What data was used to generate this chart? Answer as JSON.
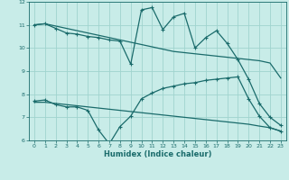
{
  "xlabel": "Humidex (Indice chaleur)",
  "xlim": [
    -0.5,
    23.5
  ],
  "ylim": [
    6,
    12
  ],
  "yticks": [
    6,
    7,
    8,
    9,
    10,
    11,
    12
  ],
  "xticks": [
    0,
    1,
    2,
    3,
    4,
    5,
    6,
    7,
    8,
    9,
    10,
    11,
    12,
    13,
    14,
    15,
    16,
    17,
    18,
    19,
    20,
    21,
    22,
    23
  ],
  "background_color": "#c8ece8",
  "grid_color": "#a0d4ce",
  "line_color": "#1a6b6b",
  "lines": [
    {
      "x": [
        0,
        1,
        2,
        3,
        4,
        5,
        6,
        7,
        8,
        9,
        10,
        11,
        12,
        13,
        14,
        15,
        16,
        17,
        18,
        19,
        20,
        21,
        22,
        23
      ],
      "y": [
        11.0,
        11.05,
        10.95,
        10.85,
        10.75,
        10.65,
        10.55,
        10.45,
        10.35,
        10.25,
        10.15,
        10.05,
        9.95,
        9.85,
        9.8,
        9.75,
        9.7,
        9.65,
        9.6,
        9.55,
        9.5,
        9.45,
        9.35,
        8.7
      ],
      "marker": false,
      "linewidth": 0.9
    },
    {
      "x": [
        0,
        1,
        2,
        3,
        4,
        5,
        6,
        7,
        8,
        9,
        10,
        11,
        12,
        13,
        14,
        15,
        16,
        17,
        18,
        19,
        20,
        21,
        22,
        23
      ],
      "y": [
        11.0,
        11.05,
        10.85,
        10.65,
        10.6,
        10.5,
        10.45,
        10.35,
        10.3,
        9.3,
        11.65,
        11.75,
        10.8,
        11.35,
        11.5,
        10.0,
        10.45,
        10.75,
        10.2,
        9.5,
        8.65,
        7.6,
        7.0,
        6.65
      ],
      "marker": true,
      "linewidth": 0.9
    },
    {
      "x": [
        0,
        1,
        2,
        3,
        4,
        5,
        6,
        7,
        8,
        9,
        10,
        11,
        12,
        13,
        14,
        15,
        16,
        17,
        18,
        19,
        20,
        21,
        22,
        23
      ],
      "y": [
        7.7,
        7.75,
        7.55,
        7.45,
        7.45,
        7.3,
        6.45,
        5.85,
        6.6,
        7.05,
        7.8,
        8.05,
        8.25,
        8.35,
        8.45,
        8.5,
        8.6,
        8.65,
        8.7,
        8.75,
        7.8,
        7.05,
        6.55,
        6.4
      ],
      "marker": true,
      "linewidth": 0.9
    },
    {
      "x": [
        0,
        1,
        2,
        3,
        4,
        5,
        6,
        7,
        8,
        9,
        10,
        11,
        12,
        13,
        14,
        15,
        16,
        17,
        18,
        19,
        20,
        21,
        22,
        23
      ],
      "y": [
        7.65,
        7.65,
        7.6,
        7.55,
        7.5,
        7.45,
        7.4,
        7.35,
        7.3,
        7.25,
        7.2,
        7.15,
        7.1,
        7.05,
        7.0,
        6.95,
        6.9,
        6.85,
        6.8,
        6.75,
        6.7,
        6.62,
        6.55,
        6.4
      ],
      "marker": false,
      "linewidth": 0.9
    }
  ]
}
